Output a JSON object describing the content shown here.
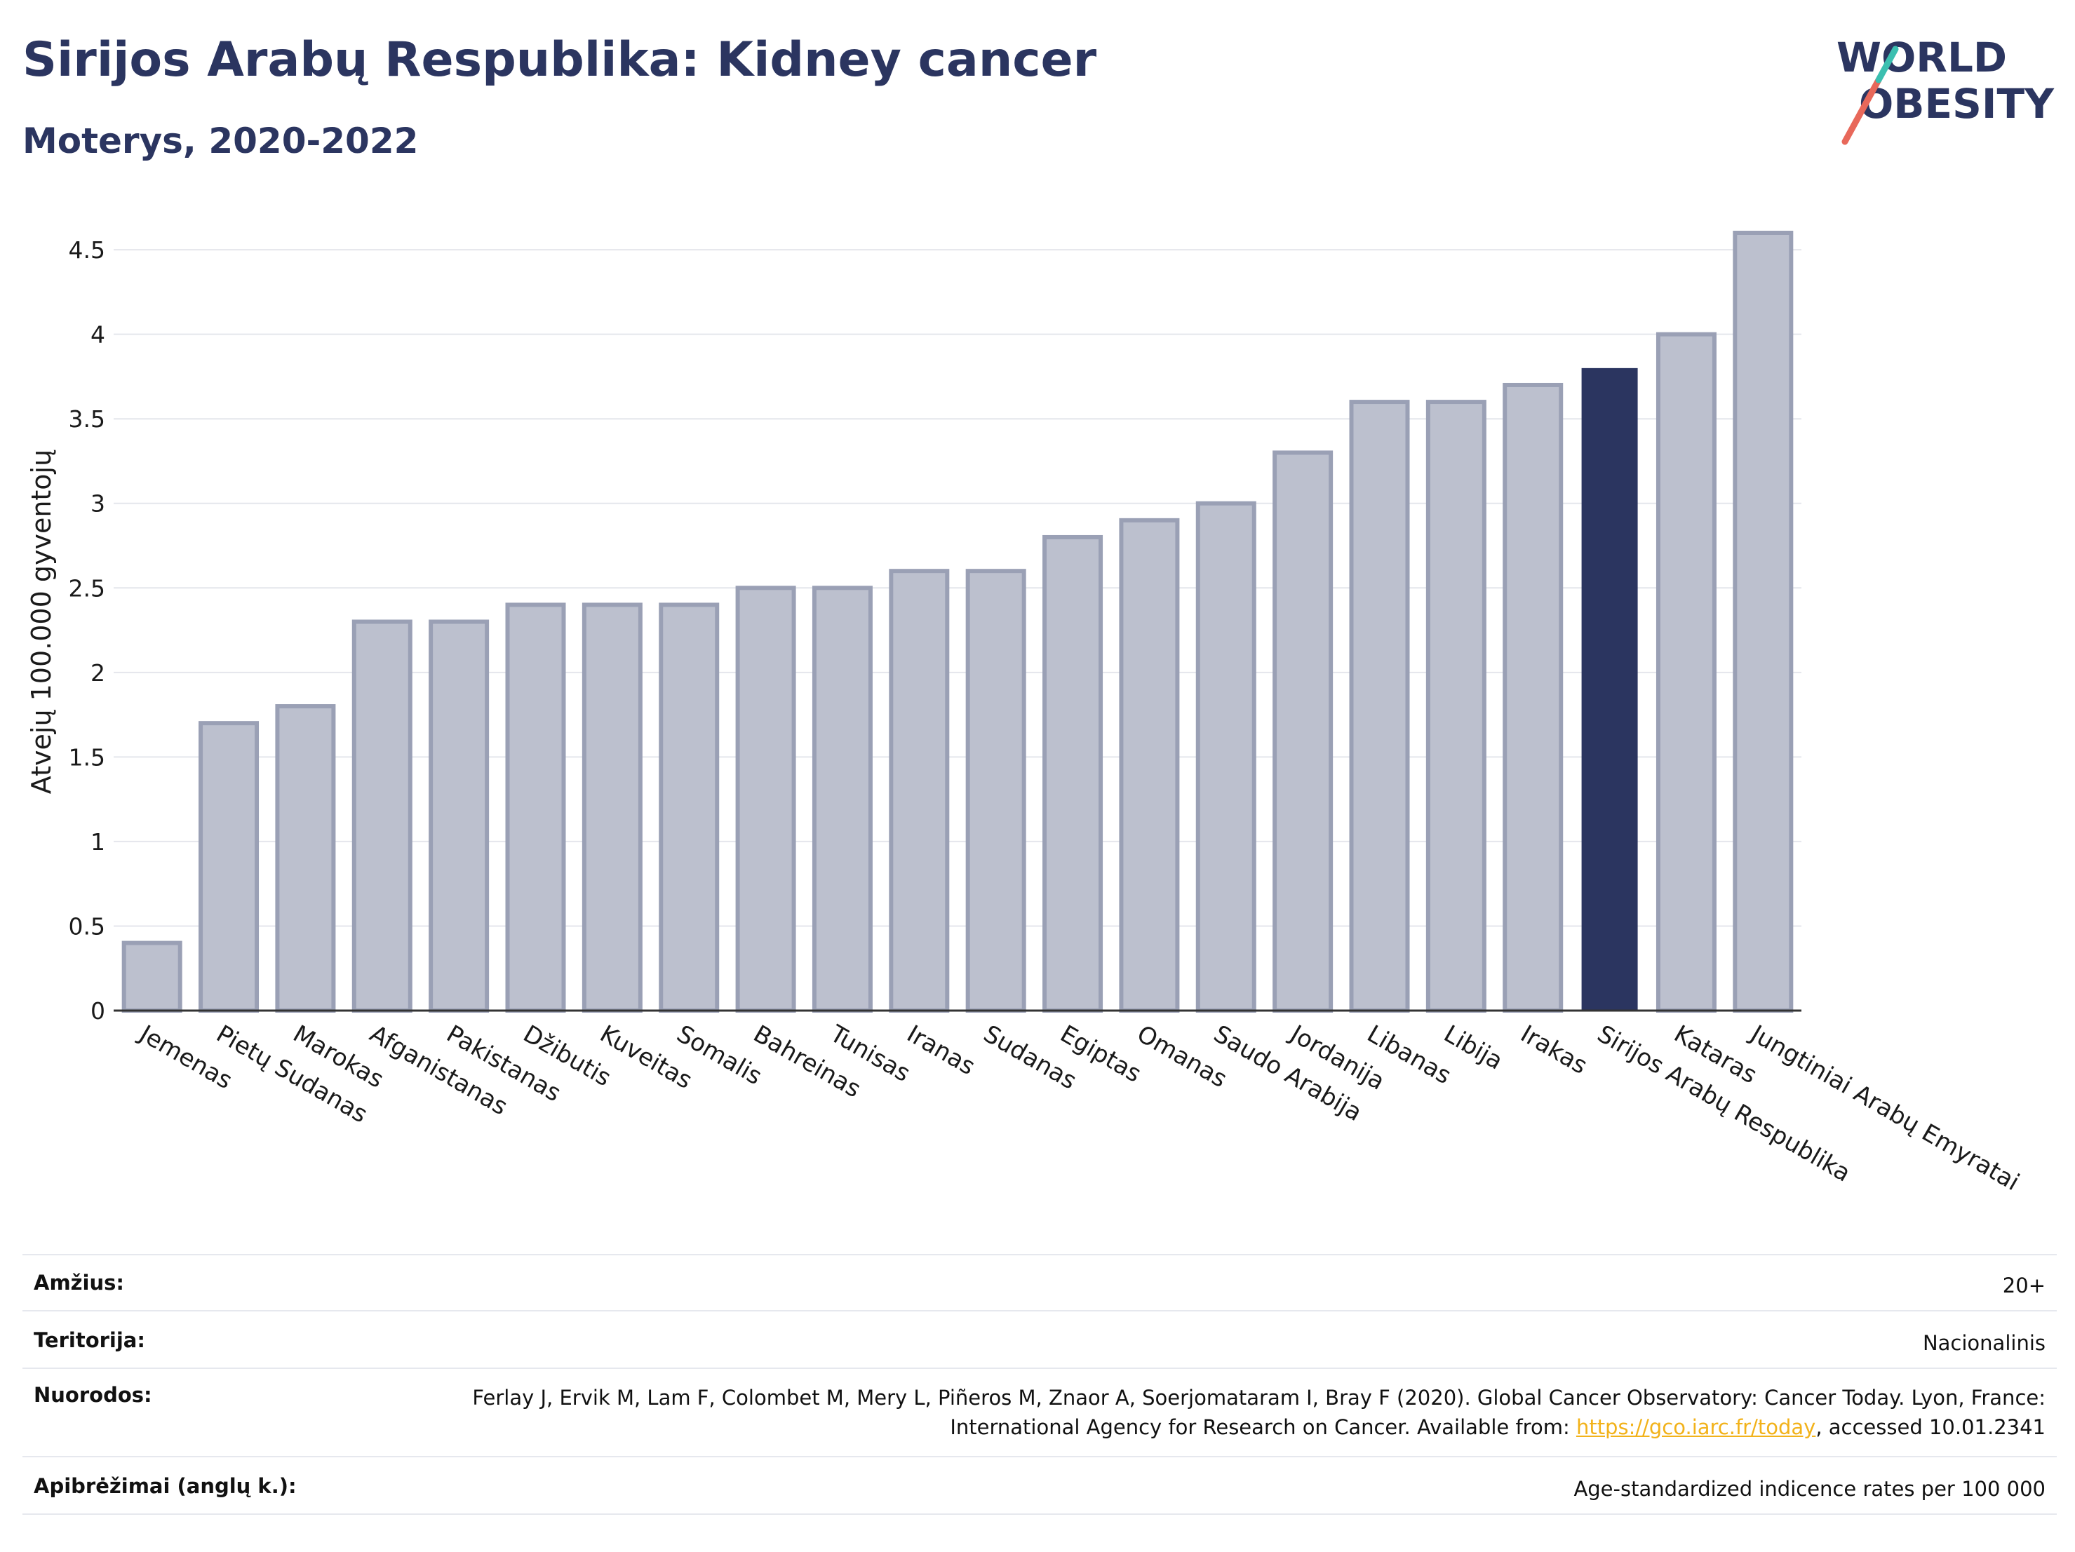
{
  "header": {
    "title": "Sirijos Arabų Respublika: Kidney cancer",
    "subtitle": "Moterys, 2020-2022"
  },
  "logo": {
    "line1": "WORLD",
    "line2": "OBESITY"
  },
  "colors": {
    "highlight_bar": "#2b3560",
    "other_bar_fill": "#bcc0ce",
    "other_bar_stroke": "#9aa0b5",
    "logo_slash_red": "#e8685a",
    "logo_slash_teal": "#3bbfb0",
    "link": "#f2b21a"
  },
  "chart_data": {
    "type": "bar",
    "ylabel": "Atvejų 100.000 gyventojų",
    "ylim": [
      0,
      4.6
    ],
    "yticks": [
      0,
      0.5,
      1,
      1.5,
      2,
      2.5,
      3,
      3.5,
      4,
      4.5
    ],
    "ytick_labels": [
      "0",
      "0.5",
      "1",
      "1.5",
      "2",
      "2.5",
      "3",
      "3.5",
      "4",
      "4.5"
    ],
    "grid": true,
    "highlight": "Sirijos Arabų Respublika",
    "categories": [
      "Jemenas",
      "Pietų Sudanas",
      "Marokas",
      "Afganistanas",
      "Pakistanas",
      "Džibutis",
      "Kuveitas",
      "Somalis",
      "Bahreinas",
      "Tunisas",
      "Iranas",
      "Sudanas",
      "Egiptas",
      "Omanas",
      "Saudo Arabija",
      "Jordanija",
      "Libanas",
      "Libija",
      "Irakas",
      "Sirijos Arabų Respublika",
      "Kataras",
      "Jungtiniai Arabų Emyratai"
    ],
    "values": [
      0.4,
      1.7,
      1.8,
      2.3,
      2.3,
      2.4,
      2.4,
      2.4,
      2.5,
      2.5,
      2.6,
      2.6,
      2.8,
      2.9,
      3.0,
      3.3,
      3.6,
      3.6,
      3.7,
      3.8,
      4.0,
      4.6
    ]
  },
  "meta": {
    "age_label": "Amžius:",
    "age_value": "20+",
    "territory_label": "Teritorija:",
    "territory_value": "Nacionalinis",
    "refs_label": "Nuorodos:",
    "refs_text_1": "Ferlay J, Ervik M, Lam F, Colombet M, Mery L, Piñeros M, Znaor A, Soerjomataram I, Bray F (2020). Global Cancer Observatory: Cancer Today. Lyon, France: International Agency for Research on Cancer. Available from: ",
    "refs_link": "https://gco.iarc.fr/today",
    "refs_text_2": ", accessed 10.01.2341",
    "definitions_label": "Apibrėžimai (anglų k.):",
    "definitions_value": "Age-standardized indicence rates per 100 000"
  }
}
